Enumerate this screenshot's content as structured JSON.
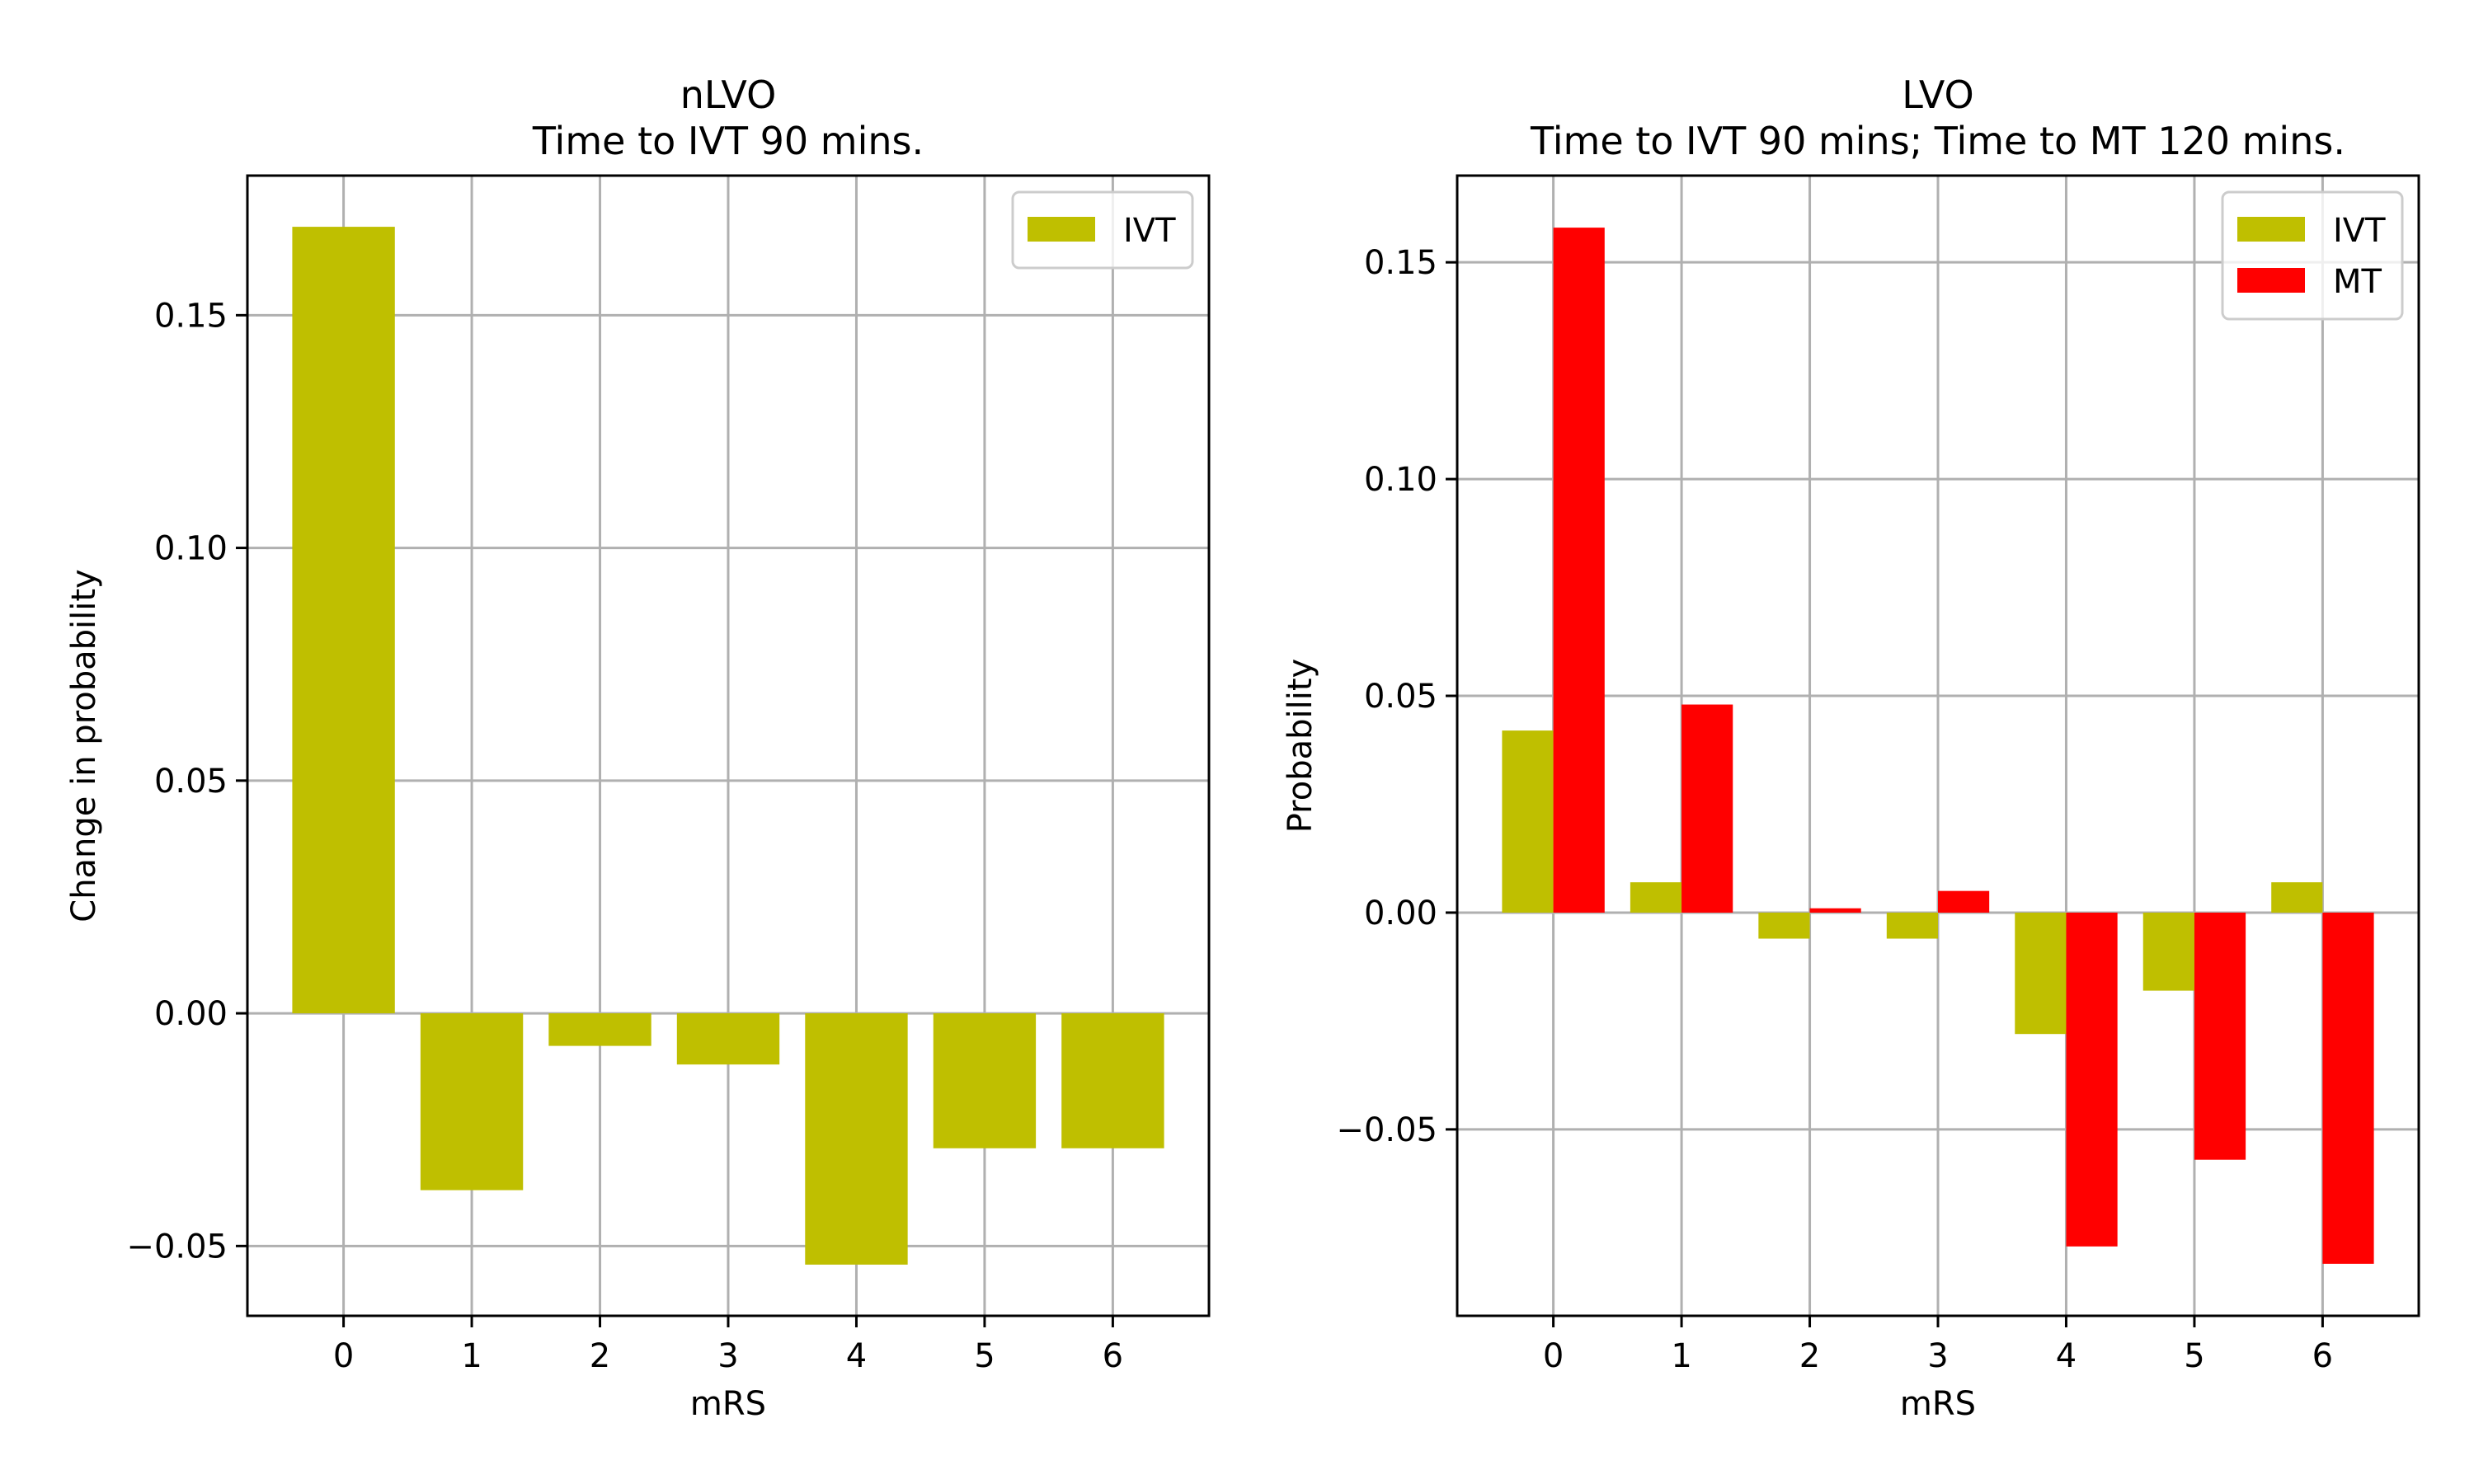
{
  "chart_data": [
    {
      "type": "bar",
      "title": "nLVO\nTime to IVT 90 mins.",
      "xlabel": "mRS",
      "ylabel": "Change in probability",
      "categories": [
        "0",
        "1",
        "2",
        "3",
        "4",
        "5",
        "6"
      ],
      "ylim": [
        -0.065,
        0.18
      ],
      "yticks": [
        -0.05,
        0.0,
        0.05,
        0.1,
        0.15
      ],
      "ytick_labels": [
        "−0.05",
        "0.00",
        "0.05",
        "0.10",
        "0.15"
      ],
      "grid": true,
      "legend_position": "upper right",
      "series": [
        {
          "name": "IVT",
          "color": "#bfbf00",
          "values": [
            0.169,
            -0.038,
            -0.007,
            -0.011,
            -0.054,
            -0.029,
            -0.029
          ]
        }
      ]
    },
    {
      "type": "bar",
      "title": "LVO\nTime to IVT 90 mins; Time to MT 120 mins.",
      "xlabel": "mRS",
      "ylabel": "Probability",
      "categories": [
        "0",
        "1",
        "2",
        "3",
        "4",
        "5",
        "6"
      ],
      "ylim": [
        -0.093,
        0.17
      ],
      "yticks": [
        -0.05,
        0.0,
        0.05,
        0.1,
        0.15
      ],
      "ytick_labels": [
        "−0.05",
        "0.00",
        "0.05",
        "0.10",
        "0.15"
      ],
      "grid": true,
      "legend_position": "upper right",
      "series": [
        {
          "name": "IVT",
          "color": "#bfbf00",
          "values": [
            0.042,
            0.007,
            -0.006,
            -0.006,
            -0.028,
            -0.018,
            0.007
          ]
        },
        {
          "name": "MT",
          "color": "#ff0000",
          "values": [
            0.158,
            0.048,
            0.001,
            0.005,
            -0.077,
            -0.057,
            -0.081
          ]
        }
      ]
    }
  ]
}
